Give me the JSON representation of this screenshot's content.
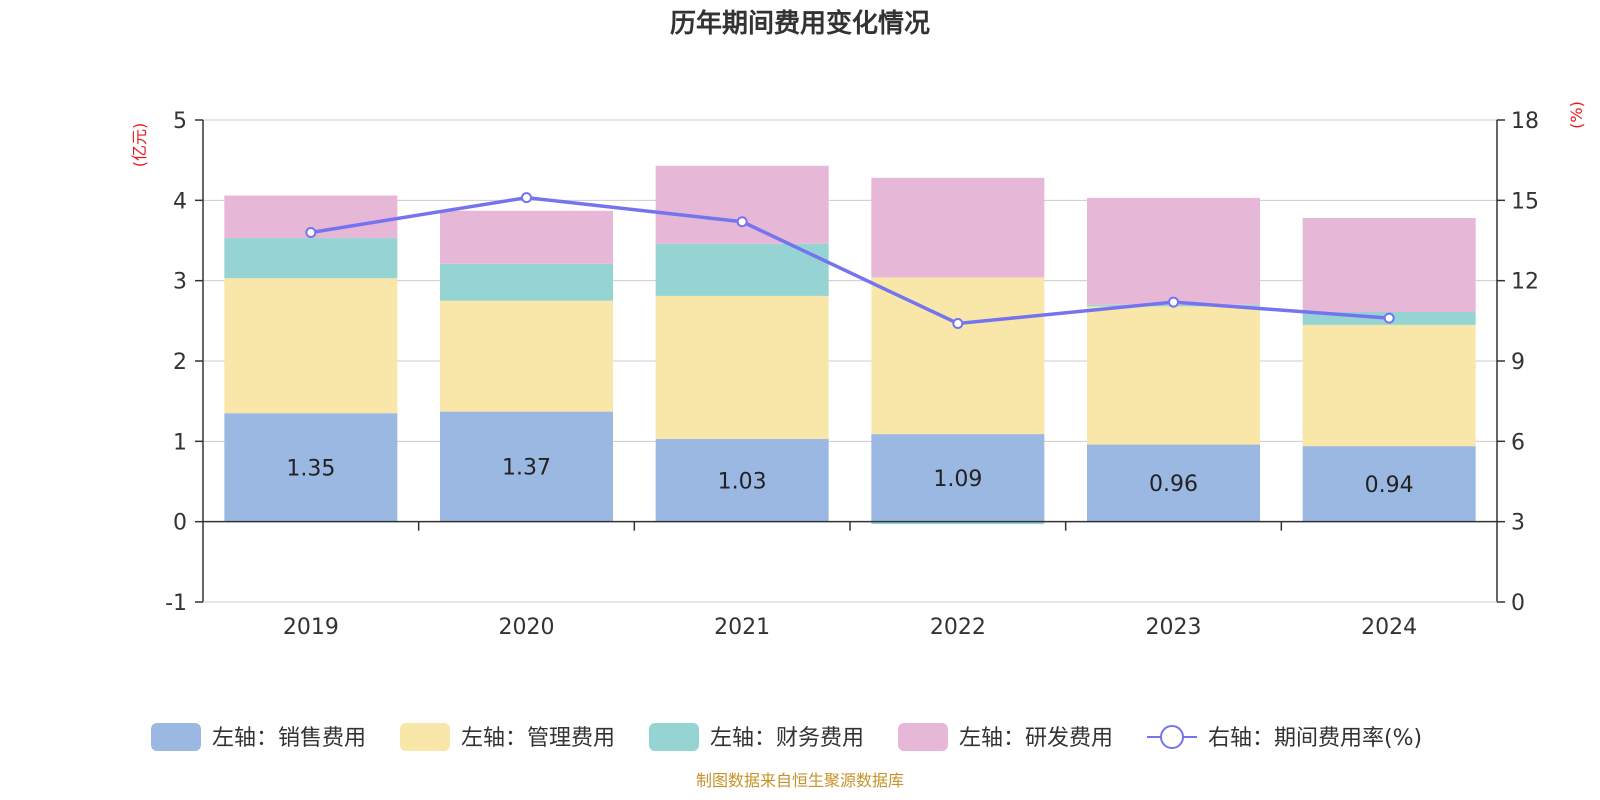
{
  "chart_data": {
    "type": "bar",
    "stacked": true,
    "title": "历年期间费用变化情况",
    "categories": [
      "2019",
      "2020",
      "2021",
      "2022",
      "2023",
      "2024"
    ],
    "left_axis": {
      "unit": "(亿元)",
      "min": -1,
      "max": 5,
      "ticks": [
        "-1",
        "0",
        "1",
        "2",
        "3",
        "4",
        "5"
      ]
    },
    "right_axis": {
      "unit": "(%)",
      "min": 0,
      "max": 18,
      "ticks": [
        "0",
        "3",
        "6",
        "9",
        "12",
        "15",
        "18"
      ]
    },
    "series": [
      {
        "name": "左轴：销售费用",
        "axis": "left",
        "color": "#9bb8e3",
        "values": [
          1.35,
          1.37,
          1.03,
          1.09,
          0.96,
          0.94
        ],
        "labels": [
          "1.35",
          "1.37",
          "1.03",
          "1.09",
          "0.96",
          "0.94"
        ]
      },
      {
        "name": "左轴：管理费用",
        "axis": "left",
        "color": "#f8e7a9",
        "values": [
          1.68,
          1.38,
          1.78,
          1.95,
          1.72,
          1.51
        ]
      },
      {
        "name": "左轴：财务费用",
        "axis": "left",
        "color": "#96d4d4",
        "values": [
          0.5,
          0.46,
          0.65,
          -0.03,
          0.02,
          0.16
        ]
      },
      {
        "name": "左轴：研发费用",
        "axis": "left",
        "color": "#e7b7d8",
        "values": [
          0.53,
          0.66,
          0.97,
          1.24,
          1.33,
          1.17
        ]
      }
    ],
    "line_series": {
      "name": "右轴：期间费用率(%)",
      "axis": "right",
      "color": "#7474ee",
      "values": [
        13.8,
        15.1,
        14.2,
        10.4,
        11.2,
        10.6
      ]
    },
    "grid": true,
    "legend_position": "bottom-center"
  },
  "source_note": "制图数据来自恒生聚源数据库",
  "colors": {
    "title": "#333333",
    "unit": "#e8181c",
    "source": "#c8922a",
    "axis": "#333333",
    "grid": "#cccccc"
  }
}
